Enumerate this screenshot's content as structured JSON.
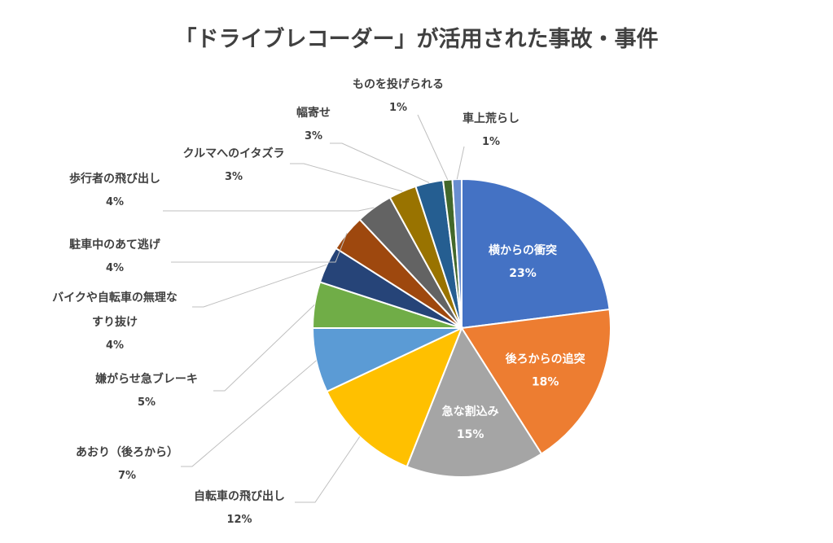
{
  "chart_data": {
    "type": "pie",
    "title": "「ドライブレコーダー」が活用された事故・事件",
    "unit": "%",
    "legend": "none",
    "slices": [
      {
        "name": "横からの衝突",
        "value": 23,
        "label": "23%",
        "color": "#4472C4",
        "inside": true
      },
      {
        "name": "後ろからの追突",
        "value": 18,
        "label": "18%",
        "color": "#ED7D31",
        "inside": true
      },
      {
        "name": "急な割込み",
        "value": 15,
        "label": "15%",
        "color": "#A5A5A5",
        "inside": true
      },
      {
        "name": "自転車の飛び出し",
        "value": 12,
        "label": "12%",
        "color": "#FFC000",
        "inside": false
      },
      {
        "name": "あおり（後ろから）",
        "value": 7,
        "label": "7%",
        "color": "#5B9BD5",
        "inside": false
      },
      {
        "name": "嫌がらせ急ブレーキ",
        "value": 5,
        "label": "5%",
        "color": "#70AD47",
        "inside": false
      },
      {
        "name": "バイクや自転車の無理な\nすり抜け",
        "value": 4,
        "label": "4%",
        "color": "#264478",
        "inside": false
      },
      {
        "name": "駐車中のあて逃げ",
        "value": 4,
        "label": "4%",
        "color": "#9E480E",
        "inside": false
      },
      {
        "name": "歩行者の飛び出し",
        "value": 4,
        "label": "4%",
        "color": "#636363",
        "inside": false
      },
      {
        "name": "クルマへのイタズラ",
        "value": 3,
        "label": "3%",
        "color": "#997300",
        "inside": false
      },
      {
        "name": "幅寄せ",
        "value": 3,
        "label": "3%",
        "color": "#255E91",
        "inside": false
      },
      {
        "name": "ものを投げられる",
        "value": 1,
        "label": "1%",
        "color": "#43682B",
        "inside": false
      },
      {
        "name": "車上荒らし",
        "value": 1,
        "label": "1%",
        "color": "#698ED0",
        "inside": false
      }
    ]
  }
}
